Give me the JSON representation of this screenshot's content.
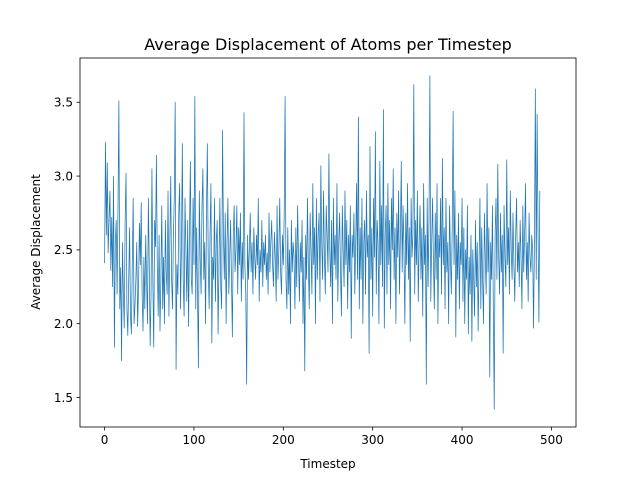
{
  "chart_data": {
    "type": "line",
    "title": "Average Displacement of Atoms per Timestep",
    "xlabel": "Timestep",
    "ylabel": "Average Displacement",
    "xlim": [
      -27.5,
      527.5
    ],
    "ylim": [
      1.3,
      3.8
    ],
    "xticks": [
      0,
      100,
      200,
      300,
      400,
      500
    ],
    "yticks": [
      1.5,
      2.0,
      2.5,
      3.0,
      3.5
    ],
    "ytick_labels": [
      "1.5",
      "2.0",
      "2.5",
      "3.0",
      "3.5"
    ],
    "grid": false,
    "color": "#1f77b4",
    "series": [
      {
        "x_start": 0,
        "x_step": 1,
        "values": [
          2.41,
          3.23,
          2.6,
          3.09,
          2.48,
          2.71,
          2.9,
          2.36,
          2.72,
          2.25,
          3.0,
          1.84,
          2.55,
          2.7,
          2.2,
          2.78,
          3.51,
          2.1,
          2.38,
          1.75,
          2.55,
          2.2,
          1.97,
          2.7,
          3.02,
          2.1,
          1.92,
          2.3,
          2.65,
          2.05,
          1.93,
          2.4,
          2.85,
          2.0,
          2.12,
          2.3,
          2.55,
          1.98,
          2.25,
          2.68,
          2.4,
          2.82,
          2.2,
          1.95,
          2.45,
          2.1,
          2.6,
          2.3,
          2.0,
          2.85,
          2.4,
          1.85,
          2.2,
          3.05,
          2.3,
          1.84,
          2.7,
          2.52,
          3.14,
          2.4,
          2.05,
          2.6,
          1.95,
          2.3,
          2.8,
          2.1,
          2.45,
          2.0,
          2.7,
          2.35,
          2.2,
          2.9,
          2.05,
          2.55,
          3.0,
          2.3,
          2.1,
          2.6,
          2.85,
          3.5,
          1.69,
          2.4,
          2.2,
          2.75,
          2.95,
          2.1,
          2.5,
          3.22,
          2.3,
          2.05,
          2.85,
          2.5,
          2.15,
          2.7,
          1.98,
          2.6,
          3.1,
          2.3,
          2.2,
          2.85,
          2.4,
          3.54,
          2.1,
          2.65,
          2.2,
          1.7,
          2.9,
          2.45,
          2.2,
          2.8,
          3.05,
          2.3,
          2.55,
          2.0,
          2.75,
          3.22,
          2.4,
          2.1,
          2.6,
          2.95,
          1.87,
          2.45,
          2.3,
          2.85,
          2.15,
          2.55,
          2.7,
          1.93,
          2.4,
          2.85,
          2.25,
          2.1,
          3.31,
          2.6,
          2.3,
          2.75,
          2.0,
          2.55,
          2.85,
          2.2,
          2.45,
          2.7,
          2.3,
          1.91,
          2.6,
          2.8,
          2.35,
          2.5,
          2.8,
          2.2,
          2.65,
          2.4,
          2.75,
          2.15,
          2.55,
          2.3,
          3.43,
          2.4,
          2.2,
          1.59,
          2.6,
          2.3,
          2.5,
          2.75,
          2.35,
          2.55,
          2.2,
          2.65,
          2.45,
          2.3,
          2.6,
          2.4,
          2.85,
          2.15,
          2.5,
          2.35,
          2.7,
          2.25,
          2.55,
          2.4,
          2.6,
          2.3,
          2.48,
          2.2,
          2.75,
          2.35,
          2.55,
          2.7,
          2.4,
          2.25,
          2.62,
          2.45,
          2.15,
          2.8,
          2.3,
          2.5,
          2.85,
          2.35,
          2.2,
          2.6,
          2.4,
          2.75,
          3.54,
          2.3,
          2.1,
          2.65,
          2.2,
          2.5,
          2.0,
          2.7,
          2.35,
          2.55,
          2.45,
          2.1,
          2.65,
          2.25,
          2.8,
          2.45,
          2.15,
          2.55,
          2.35,
          2.7,
          2.0,
          2.45,
          1.68,
          2.6,
          2.3,
          2.85,
          2.4,
          2.1,
          2.75,
          2.5,
          2.2,
          2.95,
          2.4,
          2.65,
          2.0,
          2.85,
          2.3,
          2.6,
          2.75,
          2.15,
          3.07,
          2.55,
          2.3,
          2.9,
          2.45,
          2.2,
          2.8,
          2.6,
          2.35,
          3.15,
          2.5,
          2.25,
          2.7,
          2.0,
          2.85,
          2.4,
          2.6,
          2.3,
          2.95,
          2.15,
          2.55,
          2.75,
          2.35,
          2.05,
          2.8,
          2.5,
          2.25,
          2.9,
          2.4,
          2.7,
          2.1,
          2.6,
          2.35,
          2.8,
          1.9,
          2.6,
          2.45,
          2.75,
          2.2,
          2.55,
          2.95,
          2.3,
          3.4,
          2.1,
          2.65,
          2.3,
          2.85,
          2.0,
          2.55,
          2.7,
          2.2,
          2.9,
          2.45,
          2.6,
          1.8,
          3.2,
          2.3,
          2.65,
          2.05,
          2.85,
          2.45,
          3.3,
          2.2,
          2.7,
          2.55,
          2.0,
          3.1,
          2.4,
          2.8,
          2.25,
          3.45,
          1.97,
          2.6,
          2.8,
          2.2,
          2.95,
          2.4,
          2.7,
          2.1,
          2.85,
          2.5,
          3.05,
          2.3,
          2.65,
          2.0,
          2.75,
          2.45,
          2.9,
          2.2,
          2.6,
          3.1,
          2.35,
          2.8,
          2.5,
          2.0,
          2.75,
          2.4,
          2.95,
          2.3,
          2.65,
          1.88,
          2.85,
          2.45,
          2.6,
          3.62,
          2.2,
          2.7,
          2.4,
          2.9,
          2.15,
          2.55,
          2.8,
          2.3,
          2.65,
          2.05,
          2.95,
          2.4,
          2.6,
          1.59,
          2.85,
          2.25,
          2.7,
          3.68,
          2.15,
          2.55,
          2.85,
          2.4,
          2.1,
          2.75,
          2.3,
          2.95,
          2.0,
          2.6,
          2.45,
          2.85,
          2.2,
          3.12,
          2.4,
          2.65,
          2.1,
          2.85,
          2.35,
          2.55,
          2.0,
          2.8,
          2.45,
          2.2,
          2.65,
          3.44,
          2.4,
          2.9,
          1.91,
          2.6,
          2.3,
          2.75,
          2.1,
          2.55,
          2.4,
          2.85,
          2.15,
          2.65,
          2.0,
          2.5,
          2.3,
          2.8,
          1.93,
          2.45,
          2.2,
          2.6,
          1.88,
          2.5,
          2.3,
          2.05,
          2.7,
          2.25,
          2.55,
          1.95,
          2.4,
          2.85,
          2.1,
          2.65,
          2.3,
          2.0,
          2.75,
          2.45,
          2.2,
          2.95,
          2.35,
          2.65,
          1.64,
          2.55,
          2.3,
          2.8,
          2.1,
          1.42,
          2.6,
          2.85,
          2.3,
          3.08,
          2.45,
          2.2,
          2.75,
          2.35,
          2.6,
          1.8,
          2.8,
          2.45,
          2.25,
          3.11,
          2.4,
          2.65,
          2.2,
          2.9,
          2.5,
          2.3,
          2.75,
          2.4,
          2.15,
          2.6,
          2.85,
          2.35,
          2.55,
          2.25,
          2.7,
          2.45,
          2.1,
          2.8,
          2.35,
          2.6,
          2.95,
          2.3,
          2.55,
          2.15,
          2.75,
          2.45,
          2.35,
          2.6,
          2.5,
          1.97,
          2.55,
          3.59,
          2.3,
          3.42,
          2.65,
          2.01,
          2.9
        ]
      }
    ]
  }
}
